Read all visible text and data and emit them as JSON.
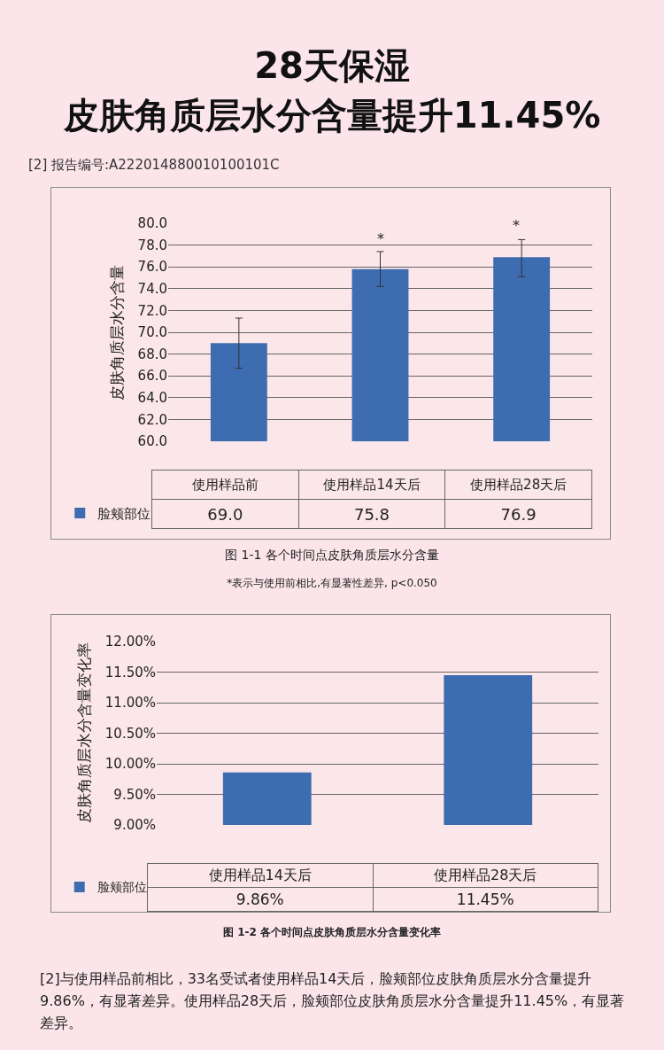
{
  "chart_data": [
    {
      "type": "bar",
      "title": "28天保湿",
      "subtitle": "皮肤角质层水分含量提升11.45%",
      "ylabel": "皮肤角质层水分含量",
      "categories": [
        "使用样品前",
        "使用样品14天后",
        "使用样品28天后"
      ],
      "series": [
        {
          "name": "脸颊部位",
          "color": "#3d6cb1",
          "values": [
            69.0,
            75.8,
            76.9
          ],
          "errors": [
            2.3,
            1.6,
            [
              75.1,
              78.5
            ]
          ],
          "value_labels": [
            "69.0",
            "75.8",
            "76.9"
          ]
        }
      ],
      "ylim": [
        60,
        80
      ],
      "yticks": [
        {
          "value": 60,
          "label": "60.0"
        },
        {
          "value": 62,
          "label": "62.0"
        },
        {
          "value": 64,
          "label": "64.0"
        },
        {
          "value": 66,
          "label": "66.0"
        },
        {
          "value": 68,
          "label": "68.0"
        },
        {
          "value": 70,
          "label": "70.0"
        },
        {
          "value": 72,
          "label": "72.0"
        },
        {
          "value": 74,
          "label": "74.0"
        },
        {
          "value": 76,
          "label": "76.0"
        },
        {
          "value": 78,
          "label": "78.0"
        },
        {
          "value": 80,
          "label": "80.0"
        }
      ],
      "grid": "y",
      "legend": "bottom left",
      "tick_labels": "y",
      "annotations": [
        "[2] 报告编号:A222014880010100101C",
        "*",
        "*",
        "图 1-1  各个时间点皮肤角质层水分含量",
        "*表示与使用前相比,有显著性差异, p<0.050"
      ]
    },
    {
      "type": "bar",
      "ylabel": "皮肤角质层水分含量变化率",
      "categories": [
        "使用样品14天后",
        "使用样品28天后"
      ],
      "series": [
        {
          "name": "脸颊部位",
          "color": "#3d6cb1",
          "values": [
            9.86,
            11.45
          ],
          "value_labels": [
            "9.86%",
            "11.45%"
          ]
        }
      ],
      "ylim": [
        9,
        12
      ],
      "yticks": [
        {
          "value": 9,
          "label": "9.00%"
        },
        {
          "value": 9.5,
          "label": "9.50%"
        },
        {
          "value": 10,
          "label": "10.00%"
        },
        {
          "value": 10.5,
          "label": "10.50%"
        },
        {
          "value": 11,
          "label": "11.00%"
        },
        {
          "value": 11.5,
          "label": "11.50%"
        },
        {
          "value": 12,
          "label": "12.00%"
        }
      ],
      "grid": "y",
      "legend": "bottom left",
      "tick_labels": "y",
      "annotations": [
        "图 1-2  各个时间点皮肤角质层水分含量变化率",
        "[2]与使用样品前相比，33名受试者使用样品14天后，脸颊部位皮肤角质层水分含量提升9.86%，有显著差异。使用样品28天后，脸颊部位皮肤角质层水分含量提升11.45%，有显著差异。"
      ]
    }
  ]
}
